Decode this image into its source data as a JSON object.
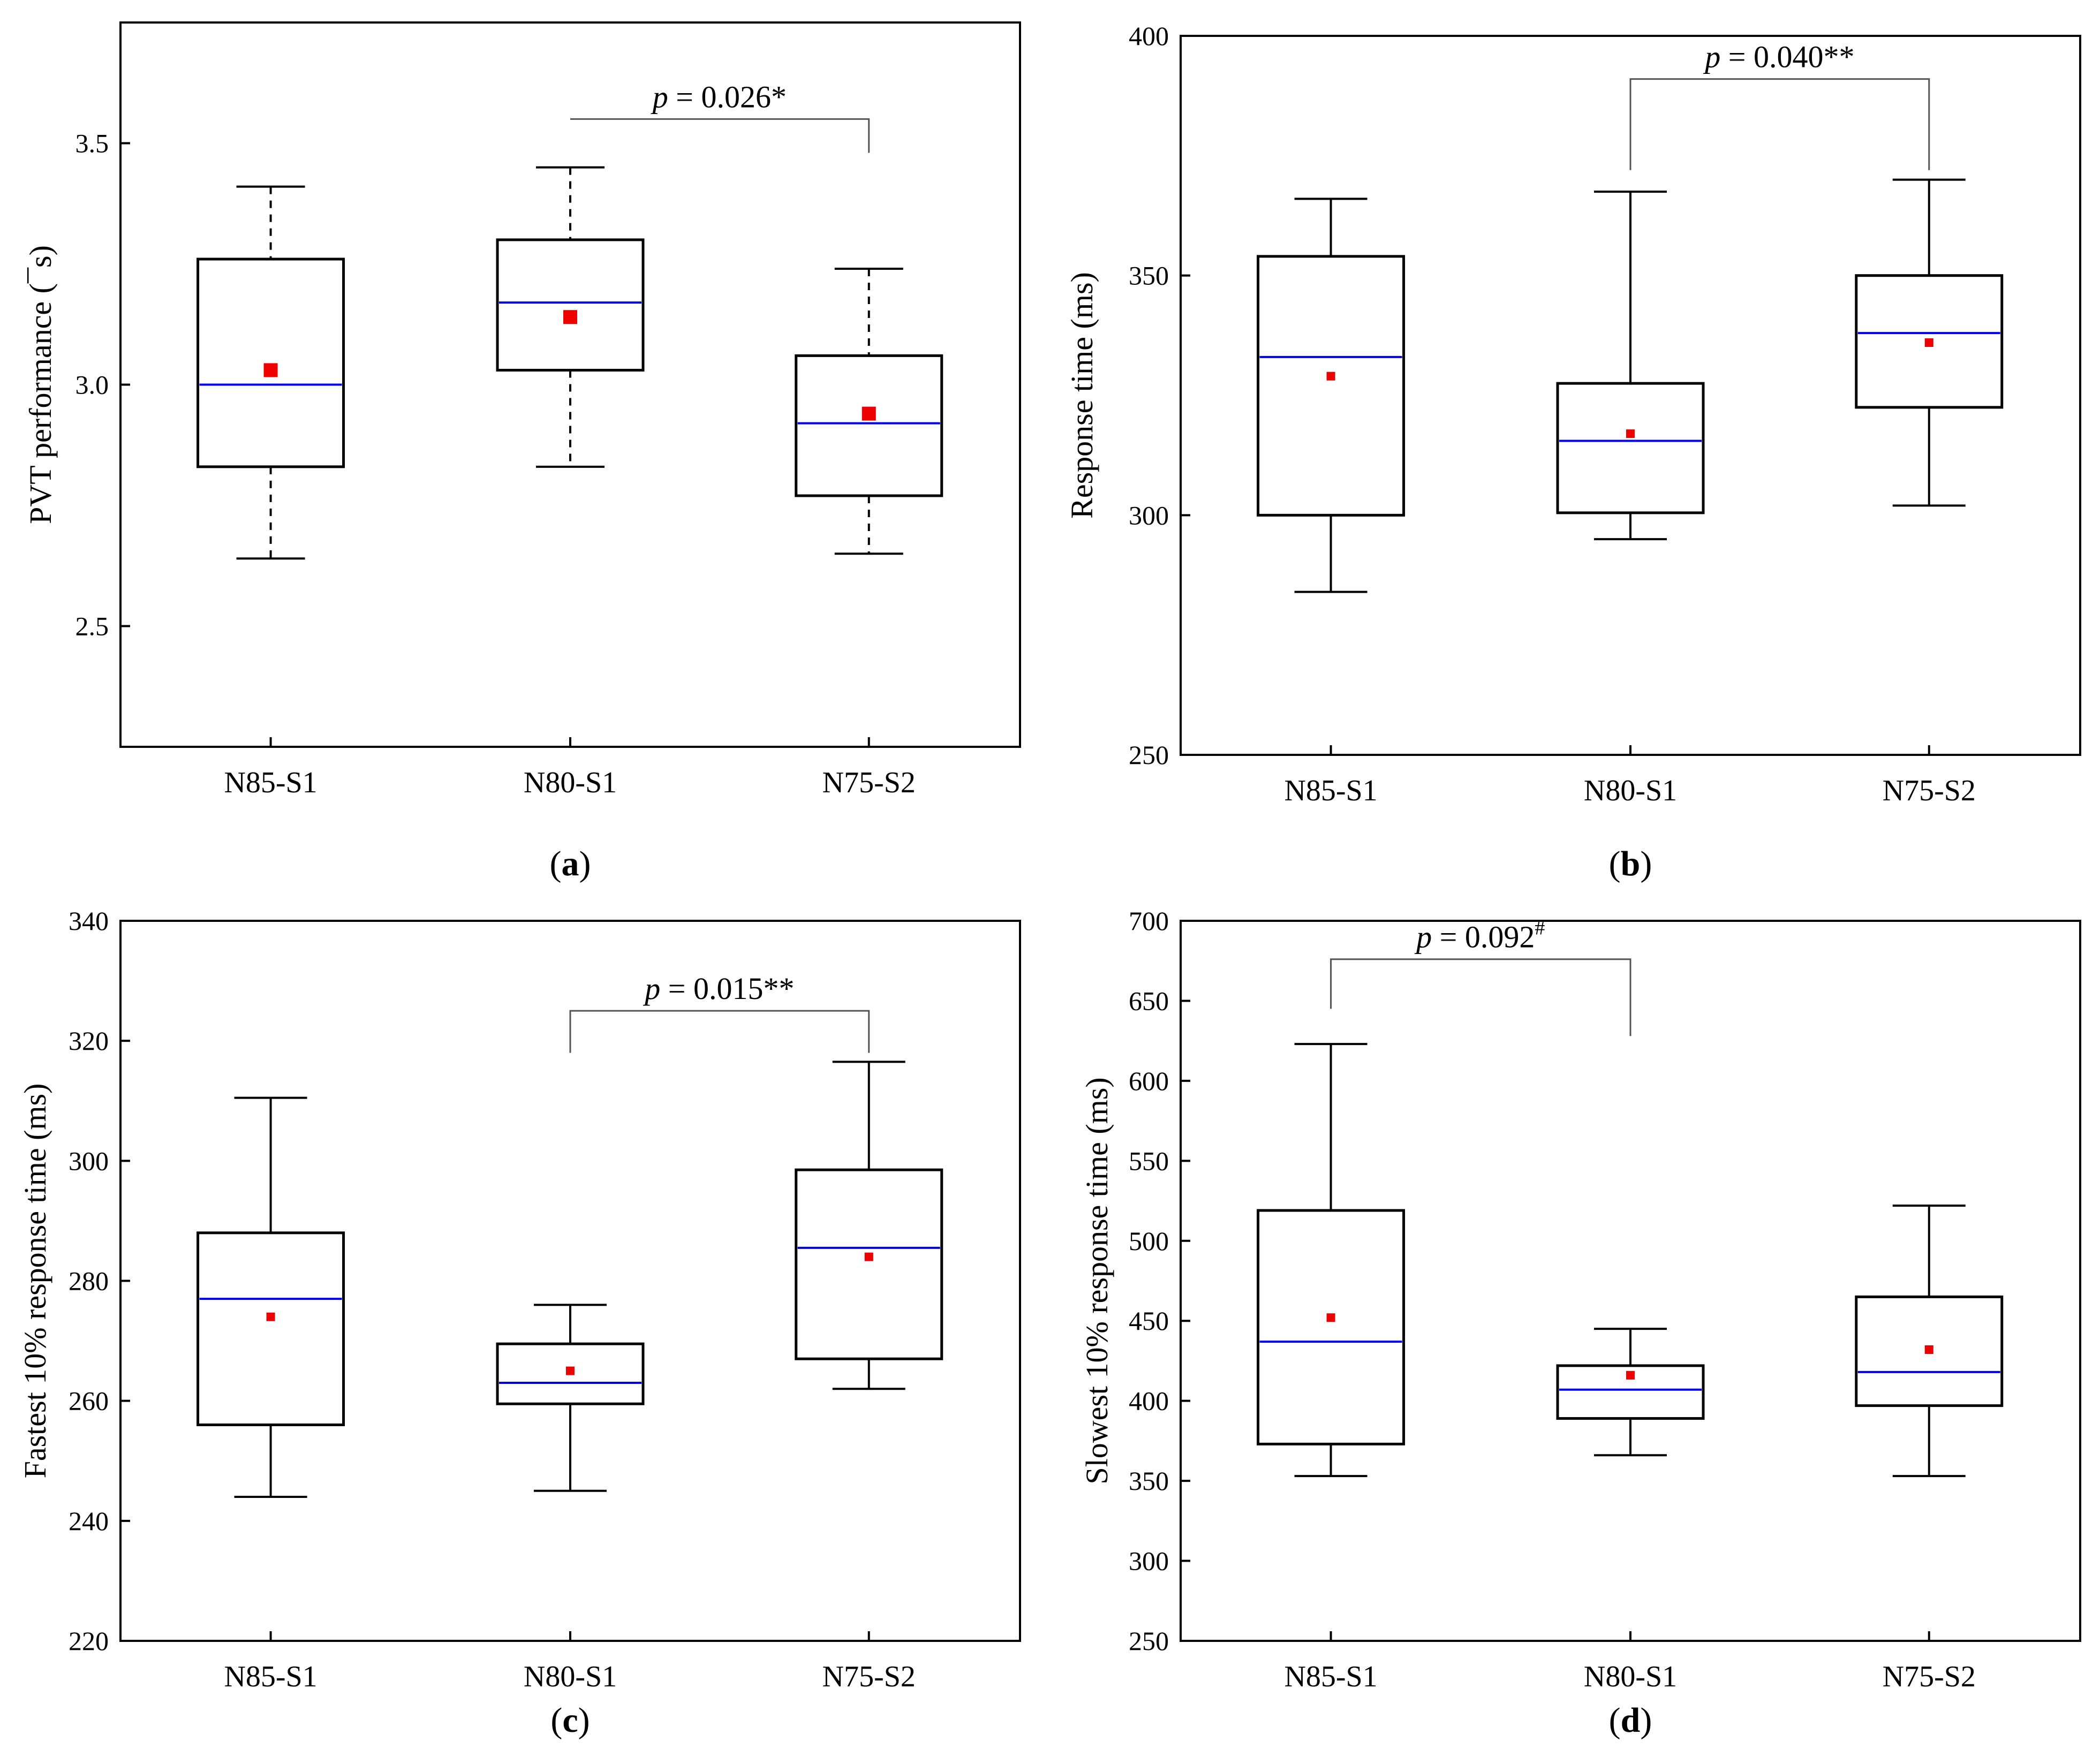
{
  "chart_data": [
    {
      "type": "box",
      "panel_label": "a",
      "ylabel": "PVT performance (¯s)",
      "ylim": [
        2.25,
        3.75
      ],
      "yticks": [
        "2.5",
        "3.0",
        "3.5"
      ],
      "yticks_values": [
        2.5,
        3.0,
        3.5
      ],
      "categories": [
        "N85-S1",
        "N80-S1",
        "N75-S2"
      ],
      "whisker_style": "dashed",
      "boxes": [
        {
          "category": "N85-S1",
          "min": 2.64,
          "q1": 2.83,
          "median": 3.0,
          "q3": 3.26,
          "max": 3.41,
          "mean": 3.03
        },
        {
          "category": "N80-S1",
          "min": 2.83,
          "q1": 3.03,
          "median": 3.17,
          "q3": 3.3,
          "max": 3.45,
          "mean": 3.14
        },
        {
          "category": "N75-S2",
          "min": 2.65,
          "q1": 2.77,
          "median": 2.92,
          "q3": 3.06,
          "max": 3.24,
          "mean": 2.94
        }
      ],
      "mean_marker": "large",
      "annotation": {
        "from": 1,
        "to": 2,
        "bracket_y": 3.55,
        "left_end": 3.55,
        "right_end": 3.48,
        "p": "p",
        "text": " = 0.026*",
        "superscript": ""
      }
    },
    {
      "type": "box",
      "panel_label": "b",
      "ylabel": "Response time (ms)",
      "ylim": [
        250,
        400
      ],
      "yticks": [
        "250",
        "300",
        "350",
        "400"
      ],
      "yticks_values": [
        250,
        300,
        350,
        400
      ],
      "categories": [
        "N85-S1",
        "N80-S1",
        "N75-S2"
      ],
      "whisker_style": "solid",
      "boxes": [
        {
          "category": "N85-S1",
          "min": 284,
          "q1": 300,
          "median": 333,
          "q3": 354,
          "max": 366,
          "mean": 329
        },
        {
          "category": "N80-S1",
          "min": 295,
          "q1": 300.5,
          "median": 315.5,
          "q3": 327.5,
          "max": 367.5,
          "mean": 317
        },
        {
          "category": "N75-S2",
          "min": 302,
          "q1": 322.5,
          "median": 338,
          "q3": 350,
          "max": 370,
          "mean": 336
        }
      ],
      "mean_marker": "small",
      "annotation": {
        "from": 1,
        "to": 2,
        "bracket_y": 391,
        "left_end": 372,
        "right_end": 372,
        "p": "p",
        "text": " = 0.040**",
        "superscript": ""
      }
    },
    {
      "type": "box",
      "panel_label": "c",
      "ylabel": "Fastest 10% response time (ms)",
      "ylim": [
        220,
        340
      ],
      "yticks": [
        "220",
        "240",
        "260",
        "280",
        "300",
        "320",
        "340"
      ],
      "yticks_values": [
        220,
        240,
        260,
        280,
        300,
        320,
        340
      ],
      "categories": [
        "N85-S1",
        "N80-S1",
        "N75-S2"
      ],
      "whisker_style": "solid",
      "boxes": [
        {
          "category": "N85-S1",
          "min": 244,
          "q1": 256,
          "median": 277,
          "q3": 288,
          "max": 310.5,
          "mean": 274
        },
        {
          "category": "N80-S1",
          "min": 245,
          "q1": 259.5,
          "median": 263,
          "q3": 269.5,
          "max": 276,
          "mean": 265
        },
        {
          "category": "N75-S2",
          "min": 262,
          "q1": 267,
          "median": 285.5,
          "q3": 298.5,
          "max": 316.5,
          "mean": 284
        }
      ],
      "mean_marker": "small",
      "annotation": {
        "from": 1,
        "to": 2,
        "bracket_y": 325,
        "left_end": 318,
        "right_end": 318,
        "p": "p",
        "text": " = 0.015**",
        "superscript": ""
      }
    },
    {
      "type": "box",
      "panel_label": "d",
      "ylabel": "Slowest 10% response time (ms)",
      "ylim": [
        250,
        700
      ],
      "yticks": [
        "250",
        "300",
        "350",
        "400",
        "450",
        "500",
        "550",
        "600",
        "650",
        "700"
      ],
      "yticks_values": [
        250,
        300,
        350,
        400,
        450,
        500,
        550,
        600,
        650,
        700
      ],
      "categories": [
        "N85-S1",
        "N80-S1",
        "N75-S2"
      ],
      "whisker_style": "solid",
      "boxes": [
        {
          "category": "N85-S1",
          "min": 353,
          "q1": 373,
          "median": 437,
          "q3": 519,
          "max": 623,
          "mean": 452
        },
        {
          "category": "N80-S1",
          "min": 366,
          "q1": 389,
          "median": 407,
          "q3": 422,
          "max": 445,
          "mean": 416
        },
        {
          "category": "N75-S2",
          "min": 353,
          "q1": 397,
          "median": 418,
          "q3": 465,
          "max": 522,
          "mean": 432
        }
      ],
      "mean_marker": "small",
      "annotation": {
        "from": 0,
        "to": 1,
        "bracket_y": 676,
        "left_end": 645,
        "right_end": 628,
        "p": "p",
        "text": " = 0.092",
        "superscript": "#"
      }
    }
  ],
  "colors": {
    "median": "#0000ee",
    "mean": "#ee0000",
    "box": "#000000"
  }
}
